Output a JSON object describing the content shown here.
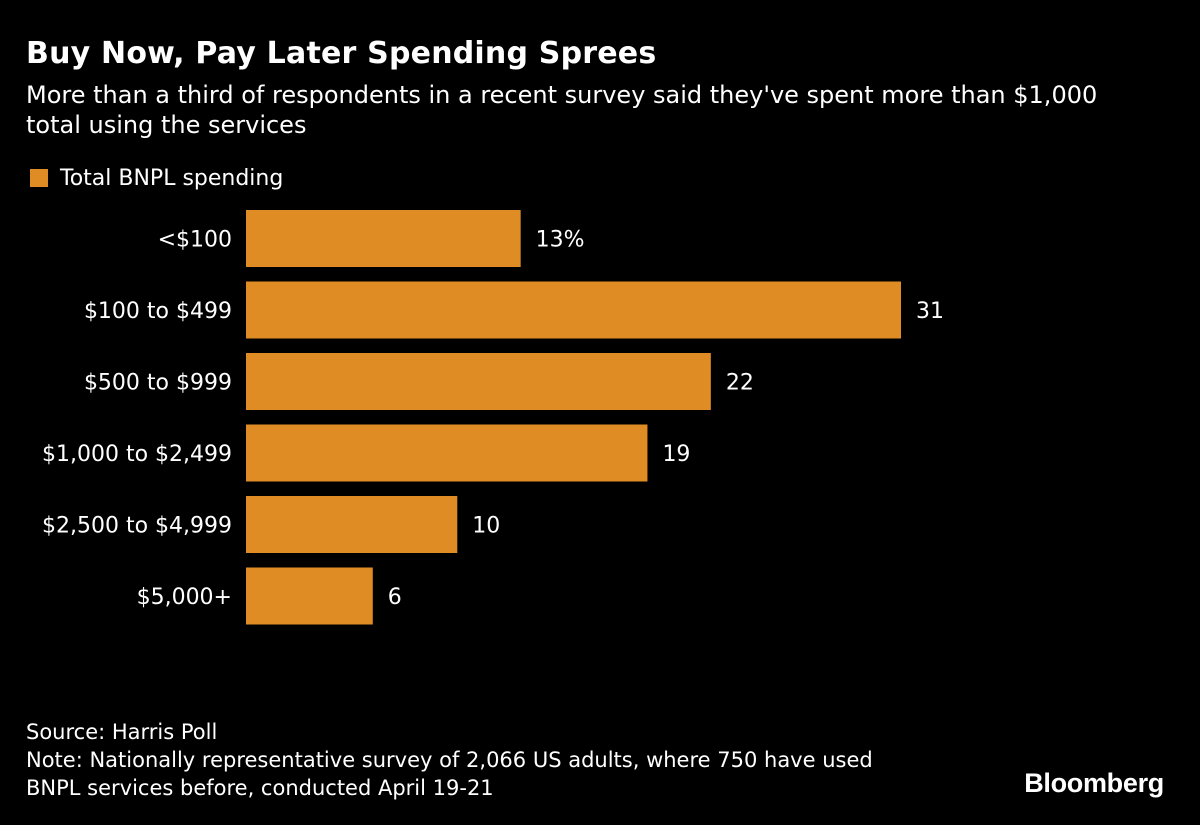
{
  "chart_data": {
    "type": "bar",
    "orientation": "horizontal",
    "title": "Buy Now, Pay Later Spending Sprees",
    "subtitle": "More than a third of respondents in a recent survey said they've spent more than $1,000 total using the services",
    "legend": [
      "Total BNPL spending"
    ],
    "categories": [
      "<$100",
      "$100 to $499",
      "$500 to $999",
      "$1,000 to $2,499",
      "$2,500 to $4,999",
      "$5,000+"
    ],
    "values": [
      13,
      31,
      22,
      19,
      10,
      6
    ],
    "value_labels": [
      "13%",
      "31",
      "22",
      "19",
      "10",
      "6"
    ],
    "unit": "%",
    "xlim": [
      0,
      31
    ],
    "grid": false,
    "legend_position": "top-left",
    "bar_color": "#e08c25"
  },
  "footer": {
    "source": "Source: Harris Poll",
    "note_line1": "Note: Nationally representative survey of 2,066 US adults, where 750 have used",
    "note_line2": "BNPL services before, conducted April 19-21"
  },
  "brand": {
    "name": "Bloomberg"
  },
  "colors": {
    "background": "#000000",
    "text": "#ffffff",
    "bar": "#e08c25"
  }
}
